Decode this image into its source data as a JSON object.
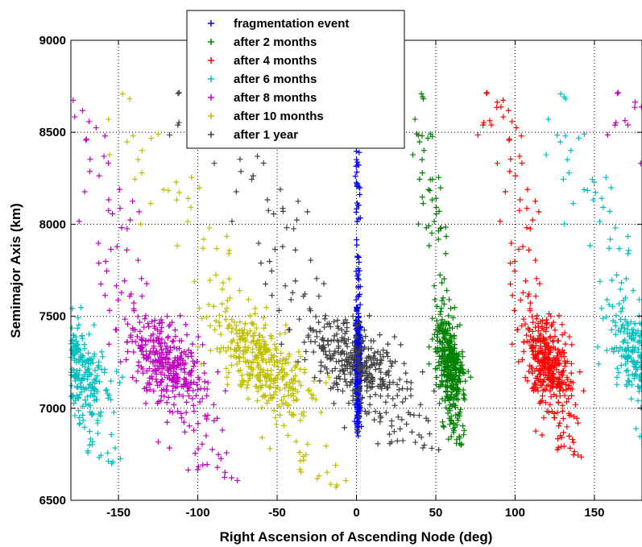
{
  "chart_data": {
    "type": "scatter",
    "title": "",
    "xlabel": "Right Ascension of Ascending Node (deg)",
    "ylabel": "Semimajor Axis (km)",
    "xlim": [
      -180,
      180
    ],
    "ylim": [
      6500,
      9000
    ],
    "xticks": [
      -150,
      -100,
      -50,
      0,
      50,
      100,
      150
    ],
    "yticks": [
      6500,
      7000,
      7500,
      8000,
      8500,
      9000
    ],
    "grid": true,
    "legend_position": "top-center",
    "marker": "+",
    "series": [
      {
        "name": "fragmentation event",
        "color": "#0000ff",
        "trend": {
          "x_at_7200": 1,
          "slope_deg_per_km": 0.0,
          "x_spread": 0.8,
          "y_center": 7250,
          "y_spread": 220,
          "y_outlier_max": 8400,
          "y_outlier_min": 6850
        }
      },
      {
        "name": "after 2 months",
        "color": "#008000",
        "trend": {
          "x_at_7200": 59,
          "slope_deg_per_km": -0.012,
          "x_spread": 4,
          "y_center": 7250,
          "y_spread": 220,
          "y_outlier_max": 8720,
          "y_outlier_min": 6800
        }
      },
      {
        "name": "after 4 months",
        "color": "#ff0000",
        "trend": {
          "x_at_7200": 122,
          "slope_deg_per_km": -0.024,
          "x_spread": 7,
          "y_center": 7250,
          "y_spread": 220,
          "y_outlier_max": 8720,
          "y_outlier_min": 6730
        }
      },
      {
        "name": "after 6 months",
        "color": "#00bfbf",
        "trend": {
          "x_at_7200": 183,
          "slope_deg_per_km": -0.036,
          "x_spread": 9,
          "y_center": 7250,
          "y_spread": 220,
          "y_outlier_max": 8720,
          "y_outlier_min": 6700
        }
      },
      {
        "name": "after 8 months",
        "color": "#bf00bf",
        "trend": {
          "x_at_7200": -117,
          "slope_deg_per_km": -0.048,
          "x_spread": 11,
          "y_center": 7250,
          "y_spread": 220,
          "y_outlier_max": 8720,
          "y_outlier_min": 6600
        }
      },
      {
        "name": "after 10 months",
        "color": "#bfbf00",
        "trend": {
          "x_at_7200": -57,
          "slope_deg_per_km": -0.06,
          "x_spread": 12,
          "y_center": 7250,
          "y_spread": 220,
          "y_outlier_max": 8720,
          "y_outlier_min": 6570
        }
      },
      {
        "name": "after 1 year",
        "color": "#404040",
        "trend": {
          "x_at_7200": 4,
          "slope_deg_per_km": -0.072,
          "x_spread": 14,
          "y_center": 7250,
          "y_spread": 220,
          "y_outlier_max": 8720,
          "y_outlier_min": 6770
        }
      }
    ]
  }
}
